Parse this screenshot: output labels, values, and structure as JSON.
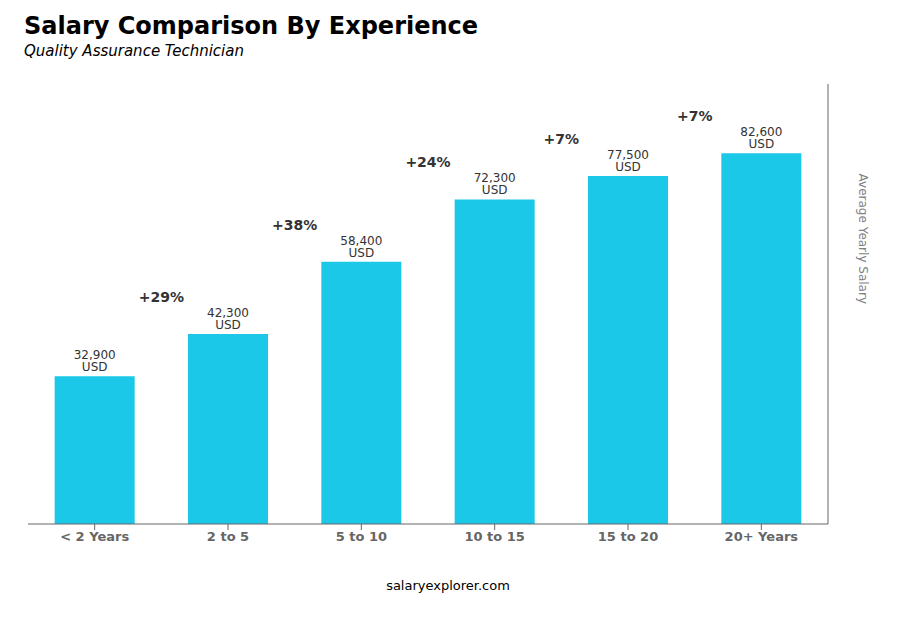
{
  "chart_data": {
    "type": "bar",
    "title": "Salary Comparison By Experience",
    "subtitle": "Quality Assurance Technician",
    "categories": [
      "< 2 Years",
      "2 to 5",
      "5 to 10",
      "10 to 15",
      "15 to 20",
      "20+ Years"
    ],
    "values": [
      32900,
      42300,
      58400,
      72300,
      77500,
      82600
    ],
    "value_labels": [
      "32,900 USD",
      "42,300 USD",
      "58,400 USD",
      "72,300 USD",
      "77,500 USD",
      "82,600 USD"
    ],
    "data_labels": true,
    "annotations": [
      "+29%",
      "+38%",
      "+24%",
      "+7%",
      "+7%"
    ],
    "ylabel": "Average Yearly Salary",
    "watermark": "salaryexplorer.com",
    "color": "#1BC8E8",
    "ylim": [
      0,
      98000
    ],
    "grid": false,
    "tick_labels": "x"
  }
}
